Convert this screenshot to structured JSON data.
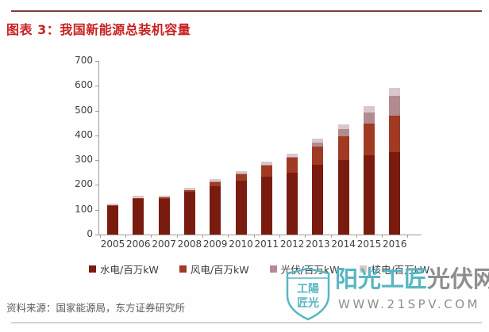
{
  "page": {
    "title": "图表 3：我国新能源总装机容量",
    "source": "资料来源：国家能源局，东方证券研究所"
  },
  "watermark": {
    "shield_line1": "工陽",
    "shield_line2": "匠光",
    "brand_teal": "阳光工匠",
    "brand_gray": "光伏网",
    "url": "WWW.21SPV.COM",
    "teal_color": "#57B6C2",
    "gray_color": "#8E8E8E"
  },
  "chart_data": {
    "type": "bar",
    "stacked": true,
    "title": "我国新能源总装机容量",
    "xlabel": "",
    "ylabel": "",
    "ylim": [
      0,
      700
    ],
    "yticks": [
      0,
      100,
      200,
      300,
      400,
      500,
      600,
      700
    ],
    "grid": false,
    "legend_position": "bottom",
    "categories": [
      "2005",
      "2006",
      "2007",
      "2008",
      "2009",
      "2010",
      "2011",
      "2012",
      "2013",
      "2014",
      "2015",
      "2016"
    ],
    "series": [
      {
        "name": "水电/百万kW",
        "color": "#7A1B10",
        "values": [
          117,
          146,
          145,
          172,
          196,
          216,
          233,
          249,
          280,
          302,
          319,
          332
        ]
      },
      {
        "name": "风电/百万kW",
        "color": "#A03A23",
        "values": [
          1.3,
          2.6,
          4.2,
          8.4,
          17.6,
          29.6,
          45.1,
          60.8,
          75.5,
          95.8,
          129,
          149
        ]
      },
      {
        "name": "光伏/百万kW",
        "color": "#B18B8E",
        "values": [
          0,
          0,
          0.1,
          0.1,
          0.3,
          0.9,
          2.1,
          3.4,
          15.9,
          28.1,
          43.2,
          77.4
        ]
      },
      {
        "name": "核电/百万kW",
        "color": "#DAC7CA",
        "values": [
          6.8,
          6.8,
          6.9,
          8.9,
          9.1,
          10.8,
          12.6,
          12.6,
          14.6,
          19.9,
          26.1,
          33.6
        ]
      }
    ]
  }
}
